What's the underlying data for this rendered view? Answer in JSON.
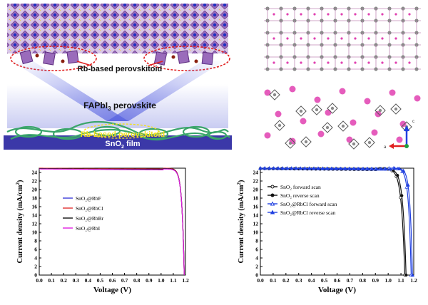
{
  "panel_a": {
    "perovskitoid_label": "Rb-based perovskitoid",
    "perovskite_label": "FAPbI",
    "perovskite_sub": "3",
    "perovskite_suffix": " perovskite",
    "interlayer_label": "Rb-based perovskitoid",
    "film_label": "SnO",
    "film_sub": "2",
    "film_suffix": " film",
    "colors": {
      "lattice": "#7b3fa0",
      "film_bg": "#3b38a8",
      "film_fiber": "#3aa56a",
      "beam": "#7a84e8",
      "ellipse": "#e02020"
    }
  },
  "panel_b": {
    "axes": {
      "c": "c",
      "a": "a"
    },
    "colors": {
      "atom_pink": "#e040b0",
      "atom_grey": "#8a8a8a",
      "bond": "#c08ab8"
    }
  },
  "chart_data": [
    {
      "type": "line",
      "xlabel": "Voltage (V)",
      "ylabel": "Current density (mA/cm",
      "ylabel_sup": "2",
      "ylabel_end": ")",
      "xlim": [
        0.0,
        1.2
      ],
      "ylim": [
        0,
        25
      ],
      "xticks": [
        "0.0",
        "0.1",
        "0.2",
        "0.3",
        "0.4",
        "0.5",
        "0.6",
        "0.7",
        "0.8",
        "0.9",
        "1.0",
        "1.1",
        "1.2"
      ],
      "yticks": [
        "0",
        "2",
        "4",
        "6",
        "8",
        "10",
        "12",
        "14",
        "16",
        "18",
        "20",
        "22",
        "24"
      ],
      "legend_position": "center-left",
      "series": [
        {
          "name": "SnO₂@RbF",
          "color": "#3b3bd8",
          "jsc": 24.9,
          "voc": 1.19,
          "knee": 1.02
        },
        {
          "name": "SnO₂@RbCl",
          "color": "#e03030",
          "jsc": 25.0,
          "voc": 1.19,
          "knee": 1.02
        },
        {
          "name": "SnO₂@RbBr",
          "color": "#111111",
          "jsc": 24.9,
          "voc": 1.19,
          "knee": 1.02
        },
        {
          "name": "SnO₂@RbI",
          "color": "#e020e0",
          "jsc": 24.8,
          "voc": 1.19,
          "knee": 1.02
        }
      ]
    },
    {
      "type": "line",
      "xlabel": "Voltage (V)",
      "ylabel": "Current density (mA/cm",
      "ylabel_sup": "2",
      "ylabel_end": ")",
      "xlim": [
        0.0,
        1.2
      ],
      "ylim": [
        0,
        25
      ],
      "xticks": [
        "0.0",
        "0.1",
        "0.2",
        "0.3",
        "0.4",
        "0.5",
        "0.6",
        "0.7",
        "0.8",
        "0.9",
        "1.0",
        "1.1",
        "1.2"
      ],
      "yticks": [
        "0",
        "2",
        "4",
        "6",
        "8",
        "10",
        "12",
        "14",
        "16",
        "18",
        "20",
        "22",
        "24"
      ],
      "legend_position": "top-left",
      "series": [
        {
          "name": "SnO₂ forward scan",
          "color": "#111111",
          "marker": "open-circle",
          "jsc": 24.9,
          "voc": 1.13,
          "knee": 0.9
        },
        {
          "name": "SnO₂ reverse scan",
          "color": "#111111",
          "marker": "filled-circle",
          "jsc": 24.9,
          "voc": 1.14,
          "knee": 0.92
        },
        {
          "name": "SnO₂@RbCl forward scan",
          "color": "#2040e0",
          "marker": "open-triangle",
          "jsc": 25.0,
          "voc": 1.18,
          "knee": 1.0
        },
        {
          "name": "SnO₂@RbCl reverse scan",
          "color": "#2040e0",
          "marker": "filled-triangle",
          "jsc": 25.0,
          "voc": 1.19,
          "knee": 1.02
        }
      ]
    }
  ]
}
